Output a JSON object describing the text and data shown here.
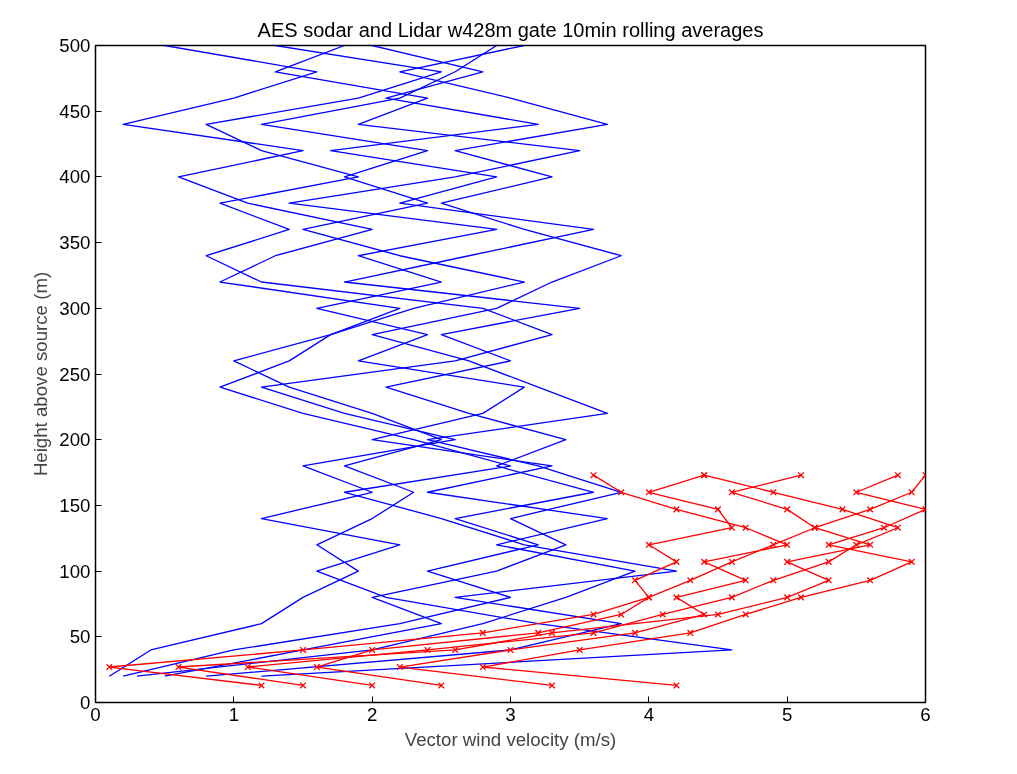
{
  "chart_data": {
    "type": "line",
    "title": "AES sodar and Lidar w428m gate 10min rolling averages",
    "xlabel": "Vector wind velocity (m/s)",
    "ylabel": "Height above source (m)",
    "xlim": [
      0,
      6
    ],
    "xticks": [
      0,
      1,
      2,
      3,
      4,
      5,
      6
    ],
    "ylim": [
      0,
      500
    ],
    "yticks": [
      0,
      50,
      100,
      150,
      200,
      250,
      300,
      350,
      400,
      450,
      500
    ],
    "grid": false,
    "line_style": "solid",
    "marker": "none",
    "series": [
      {
        "color": "#0000ff",
        "x": [
          0.1,
          0.4,
          1.2,
          1.5,
          1.9,
          1.6,
          2.0,
          2.3,
          1.8,
          2.5,
          2.0,
          1.4,
          1.0,
          1.7,
          2.2,
          0.9,
          1.3,
          2.0,
          1.1,
          0.6,
          1.5,
          0.2,
          1.0,
          1.6,
          0.5
        ],
        "values": [
          20,
          40,
          60,
          80,
          100,
          120,
          140,
          160,
          180,
          200,
          220,
          240,
          260,
          280,
          300,
          320,
          340,
          360,
          380,
          400,
          420,
          440,
          460,
          480,
          500
        ]
      },
      {
        "color": "#0000ff",
        "x": [
          0.2,
          1.0,
          2.2,
          3.0,
          2.4,
          3.2,
          2.6,
          3.6,
          2.9,
          3.4,
          2.7,
          2.1,
          3.0,
          2.5,
          3.5,
          1.8,
          2.7,
          3.6,
          2.2,
          2.9,
          1.7,
          3.2,
          2.1,
          2.8,
          2.0
        ],
        "values": [
          20,
          40,
          60,
          80,
          100,
          120,
          140,
          160,
          180,
          200,
          220,
          240,
          260,
          280,
          300,
          320,
          340,
          360,
          380,
          400,
          420,
          440,
          460,
          480,
          500
        ]
      },
      {
        "color": "#0000ff",
        "x": [
          0.3,
          2.0,
          2.8,
          3.4,
          3.9,
          2.9,
          3.7,
          2.4,
          3.3,
          2.0,
          2.8,
          3.1,
          1.9,
          2.4,
          1.6,
          2.5,
          1.9,
          2.9,
          1.4,
          2.6,
          3.5,
          1.9,
          2.4,
          1.3,
          1.8
        ],
        "values": [
          20,
          40,
          60,
          80,
          100,
          120,
          140,
          160,
          180,
          200,
          220,
          240,
          260,
          280,
          300,
          320,
          340,
          360,
          380,
          400,
          420,
          440,
          460,
          480,
          500
        ]
      },
      {
        "color": "#0000ff",
        "x": [
          0.8,
          3.0,
          3.8,
          2.6,
          4.2,
          3.1,
          2.5,
          1.8,
          3.0,
          2.3,
          1.5,
          0.9,
          1.4,
          1.7,
          2.3,
          3.1,
          2.2,
          1.5,
          2.4,
          1.8,
          2.4,
          1.2,
          2.2,
          2.6,
          2.9
        ],
        "values": [
          20,
          40,
          60,
          80,
          100,
          120,
          140,
          160,
          180,
          200,
          220,
          240,
          260,
          280,
          300,
          320,
          340,
          360,
          380,
          400,
          420,
          440,
          460,
          480,
          500
        ]
      },
      {
        "color": "#0000ff",
        "x": [
          1.2,
          4.6,
          3.2,
          2.1,
          1.6,
          2.2,
          1.2,
          2.0,
          1.5,
          2.6,
          1.8,
          1.2,
          2.6,
          3.3,
          2.8,
          1.2,
          0.8,
          1.4,
          0.9,
          1.9,
          1.2,
          0.8,
          1.9,
          2.5,
          1.3
        ],
        "values": [
          20,
          40,
          60,
          80,
          100,
          120,
          140,
          160,
          180,
          200,
          220,
          240,
          260,
          280,
          300,
          320,
          340,
          360,
          380,
          400,
          420,
          440,
          460,
          480,
          500
        ]
      },
      {
        "color": "#0000ff",
        "x": [
          0.5,
          1.5,
          2.5,
          2.0,
          2.9,
          3.4,
          3.0,
          3.8,
          3.2,
          2.4,
          3.7,
          3.2,
          2.7,
          2.0,
          2.9,
          3.3,
          3.8,
          3.1,
          2.5,
          3.3,
          2.6,
          3.7,
          3.0,
          2.2,
          3.1
        ],
        "values": [
          20,
          40,
          60,
          80,
          100,
          120,
          140,
          160,
          180,
          200,
          220,
          240,
          260,
          280,
          300,
          320,
          340,
          360,
          380,
          400,
          420,
          440,
          460,
          480,
          500
        ]
      },
      {
        "color": "#ff0000",
        "marker": "cross",
        "x": [
          1.2,
          0.1,
          1.5,
          2.8,
          3.6,
          4.0,
          4.3,
          4.6,
          4.9,
          5.2,
          5.6,
          5.9,
          6.0
        ],
        "values": [
          13,
          27,
          40,
          53,
          67,
          80,
          93,
          107,
          120,
          133,
          147,
          160,
          173
        ]
      },
      {
        "color": "#ff0000",
        "marker": "cross",
        "x": [
          2.0,
          1.1,
          2.4,
          3.6,
          4.1,
          4.6,
          4.9,
          5.3,
          5.5,
          5.8,
          5.4,
          4.9,
          4.4
        ],
        "values": [
          13,
          27,
          40,
          53,
          67,
          80,
          93,
          107,
          120,
          133,
          147,
          160,
          173
        ]
      },
      {
        "color": "#ff0000",
        "marker": "cross",
        "x": [
          3.3,
          2.2,
          3.0,
          3.9,
          4.4,
          4.2,
          4.7,
          4.4,
          5.0,
          4.7,
          4.2,
          3.8,
          3.6
        ],
        "values": [
          13,
          27,
          40,
          53,
          67,
          80,
          93,
          107,
          120,
          133,
          147,
          160,
          173
        ]
      },
      {
        "color": "#ff0000",
        "marker": "cross",
        "x": [
          4.2,
          2.8,
          3.5,
          4.3,
          4.7,
          5.1,
          5.6,
          5.9,
          5.3,
          5.7,
          6.0,
          5.5,
          5.8
        ],
        "values": [
          13,
          27,
          40,
          53,
          67,
          80,
          93,
          107,
          120,
          133,
          147,
          160,
          173
        ]
      },
      {
        "color": "#ff0000",
        "marker": "cross",
        "x": [
          2.5,
          1.6,
          2.0,
          3.2,
          3.8,
          4.0,
          3.9,
          4.2,
          4.0,
          4.6,
          4.5,
          4.0,
          4.4
        ],
        "values": [
          13,
          27,
          40,
          53,
          67,
          80,
          93,
          107,
          120,
          133,
          147,
          160,
          173
        ]
      },
      {
        "color": "#ff0000",
        "marker": "cross",
        "x": [
          1.5,
          0.6,
          2.6,
          3.3,
          4.5,
          5.0,
          5.3,
          5.0,
          5.6,
          5.2,
          5.0,
          4.6,
          5.1
        ],
        "values": [
          13,
          27,
          40,
          53,
          67,
          80,
          93,
          107,
          120,
          133,
          147,
          160,
          173
        ]
      }
    ]
  }
}
